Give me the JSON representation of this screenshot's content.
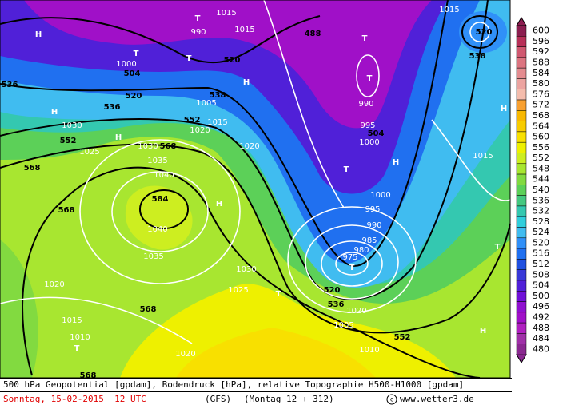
{
  "map": {
    "labels": [
      "H",
      "1015",
      "T",
      "990",
      "1015",
      "488",
      "T",
      "1015",
      "520",
      "538",
      "T",
      "1000",
      "504",
      "T",
      "520",
      "H",
      "536",
      "520",
      "538",
      "1005",
      "T",
      "990",
      "536",
      "H",
      "1030",
      "552",
      "1020",
      "1015",
      "995",
      "504",
      "1000",
      "552",
      "H",
      "1025",
      "1030",
      "568",
      "1020",
      "T",
      "H",
      "1015",
      "568",
      "1035",
      "1040",
      "1000",
      "584",
      "H",
      "995",
      "568",
      "990",
      "1040",
      "985",
      "H",
      "1035",
      "975",
      "980",
      "T",
      "1030",
      "T",
      "1020",
      "520",
      "1025",
      "T",
      "536",
      "568",
      "1020",
      "1015",
      "1005",
      "552",
      "H",
      "1010",
      "T",
      "1010",
      "1020",
      "568"
    ]
  },
  "legend": {
    "values": [
      600,
      596,
      592,
      588,
      584,
      580,
      576,
      572,
      568,
      564,
      560,
      556,
      552,
      548,
      544,
      540,
      536,
      532,
      528,
      524,
      520,
      516,
      512,
      508,
      504,
      500,
      496,
      492,
      488,
      484,
      480
    ],
    "colors": [
      "#8c1e50",
      "#b83058",
      "#d05870",
      "#dc7480",
      "#e48c90",
      "#eca4a0",
      "#f4bcac",
      "#f8a030",
      "#f8b800",
      "#f8cc00",
      "#f8e000",
      "#eef000",
      "#cdee20",
      "#a8e630",
      "#82da40",
      "#5cd058",
      "#44c880",
      "#34c8b0",
      "#30cedc",
      "#40bcf0",
      "#3090f8",
      "#2070f0",
      "#2050e0",
      "#3838d8",
      "#5020d8",
      "#7010d8",
      "#9010d0",
      "#a010c8",
      "#b020c0",
      "#a030a8",
      "#8a2890"
    ]
  },
  "footer": {
    "description": "500 hPa Geopotential [gpdam], Bodendruck [hPa], relative Topographie H500-H1000 [gpdam]",
    "date": "Sonntag, 15-02-2015  12 UTC",
    "model": "(GFS)",
    "run": "(Montag 12 + 312)",
    "credit": "www.wetter3.de"
  }
}
